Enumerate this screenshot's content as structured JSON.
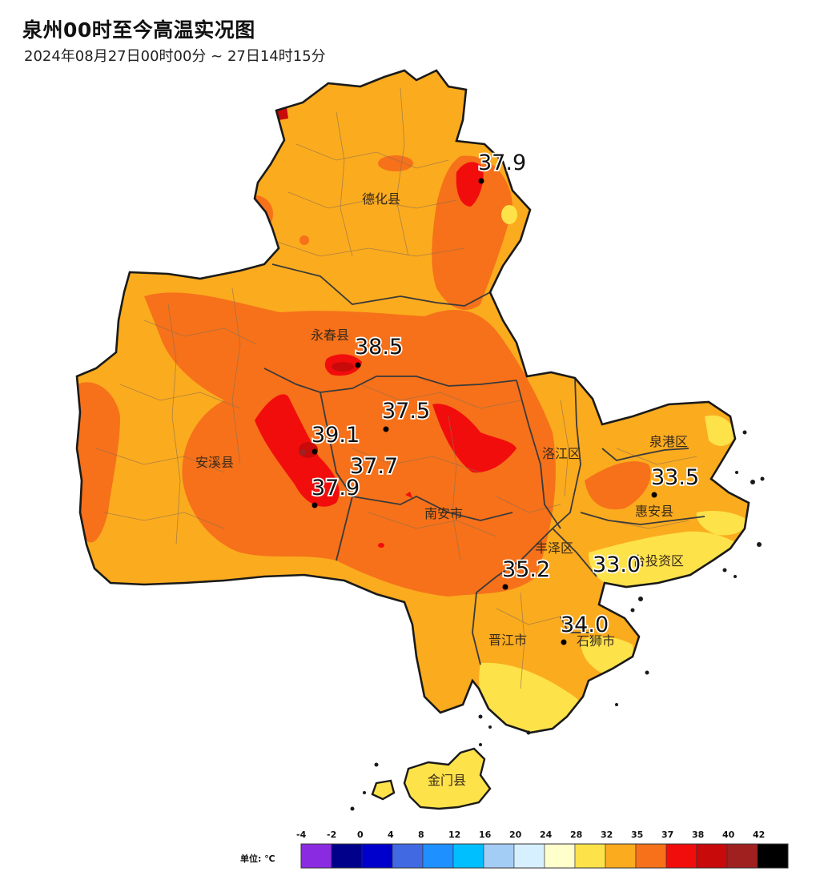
{
  "header": {
    "title": "泉州00时至今高温实况图",
    "subtitle": "2024年08月27日00时00分 ~ 27日14时15分"
  },
  "map": {
    "places": [
      {
        "id": "dehua",
        "name": "德化县"
      },
      {
        "id": "yongchun",
        "name": "永春县"
      },
      {
        "id": "anxi",
        "name": "安溪县"
      },
      {
        "id": "nanan",
        "name": "南安市"
      },
      {
        "id": "luojiang",
        "name": "洛江区"
      },
      {
        "id": "quangang",
        "name": "泉港区"
      },
      {
        "id": "huian",
        "name": "惠安县"
      },
      {
        "id": "fengze",
        "name": "丰泽区"
      },
      {
        "id": "touziqu",
        "name": "台投资区"
      },
      {
        "id": "jinjiang",
        "name": "晋江市"
      },
      {
        "id": "shishi",
        "name": "石狮市"
      },
      {
        "id": "jinmen",
        "name": "金门县"
      }
    ],
    "stations": [
      {
        "id": "dehua-ne",
        "value": "37.9"
      },
      {
        "id": "yongchun",
        "value": "38.5"
      },
      {
        "id": "center",
        "value": "37.5"
      },
      {
        "id": "anxi-east",
        "value": "39.1"
      },
      {
        "id": "anxi-mid",
        "value": "37.7"
      },
      {
        "id": "anxi-south",
        "value": "37.9"
      },
      {
        "id": "huian",
        "value": "33.5"
      },
      {
        "id": "licheng",
        "value": "35.2"
      },
      {
        "id": "touziqu",
        "value": "33.0"
      },
      {
        "id": "shishi",
        "value": "34.0"
      }
    ]
  },
  "legend": {
    "unit_label": "单位: ℃",
    "ticks": [
      "-4",
      "-2",
      "0",
      "4",
      "8",
      "12",
      "16",
      "20",
      "24",
      "28",
      "32",
      "35",
      "37",
      "38",
      "40",
      "42"
    ],
    "colors": [
      "#8a2be2",
      "#00008b",
      "#0000cd",
      "#4169e1",
      "#1e90ff",
      "#00bfff",
      "#a4cdf5",
      "#d6f0ff",
      "#ffffcc",
      "#fde24a",
      "#fbab1e",
      "#f6711a",
      "#f20d0d",
      "#c90a0a",
      "#a02020",
      "#000000"
    ]
  }
}
